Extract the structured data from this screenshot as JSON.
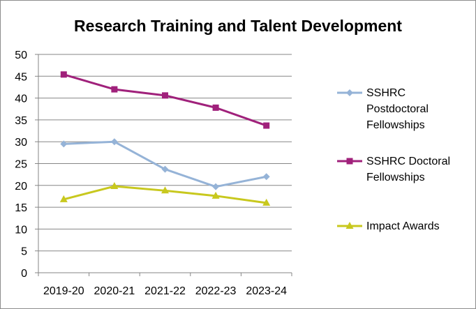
{
  "chart_data": {
    "type": "line",
    "title": "Research Training and Talent Development",
    "xlabel": "",
    "ylabel": "",
    "categories": [
      "2019-20",
      "2020-21",
      "2021-22",
      "2022-23",
      "2023-24"
    ],
    "ylim": [
      0,
      50
    ],
    "yticks": [
      0,
      5,
      10,
      15,
      20,
      25,
      30,
      35,
      40,
      45,
      50
    ],
    "grid": true,
    "legend_position": "right",
    "series": [
      {
        "name": "SSHRC Postdoctoral Fellowships",
        "legend_lines": [
          "SSHRC",
          "Postdoctoral",
          "Fellowships"
        ],
        "color": "#95b3d7",
        "marker": "diamond",
        "values": [
          29.5,
          30,
          23.7,
          19.7,
          22
        ]
      },
      {
        "name": "SSHRC Doctoral Fellowships",
        "legend_lines": [
          "SSHRC Doctoral",
          "Fellowships"
        ],
        "color": "#a0217b",
        "marker": "square",
        "values": [
          45.4,
          42,
          40.6,
          37.8,
          33.7
        ]
      },
      {
        "name": "Impact Awards",
        "legend_lines": [
          "Impact Awards"
        ],
        "color": "#c8c81e",
        "marker": "triangle",
        "values": [
          16.8,
          19.8,
          18.8,
          17.6,
          16
        ]
      }
    ]
  }
}
